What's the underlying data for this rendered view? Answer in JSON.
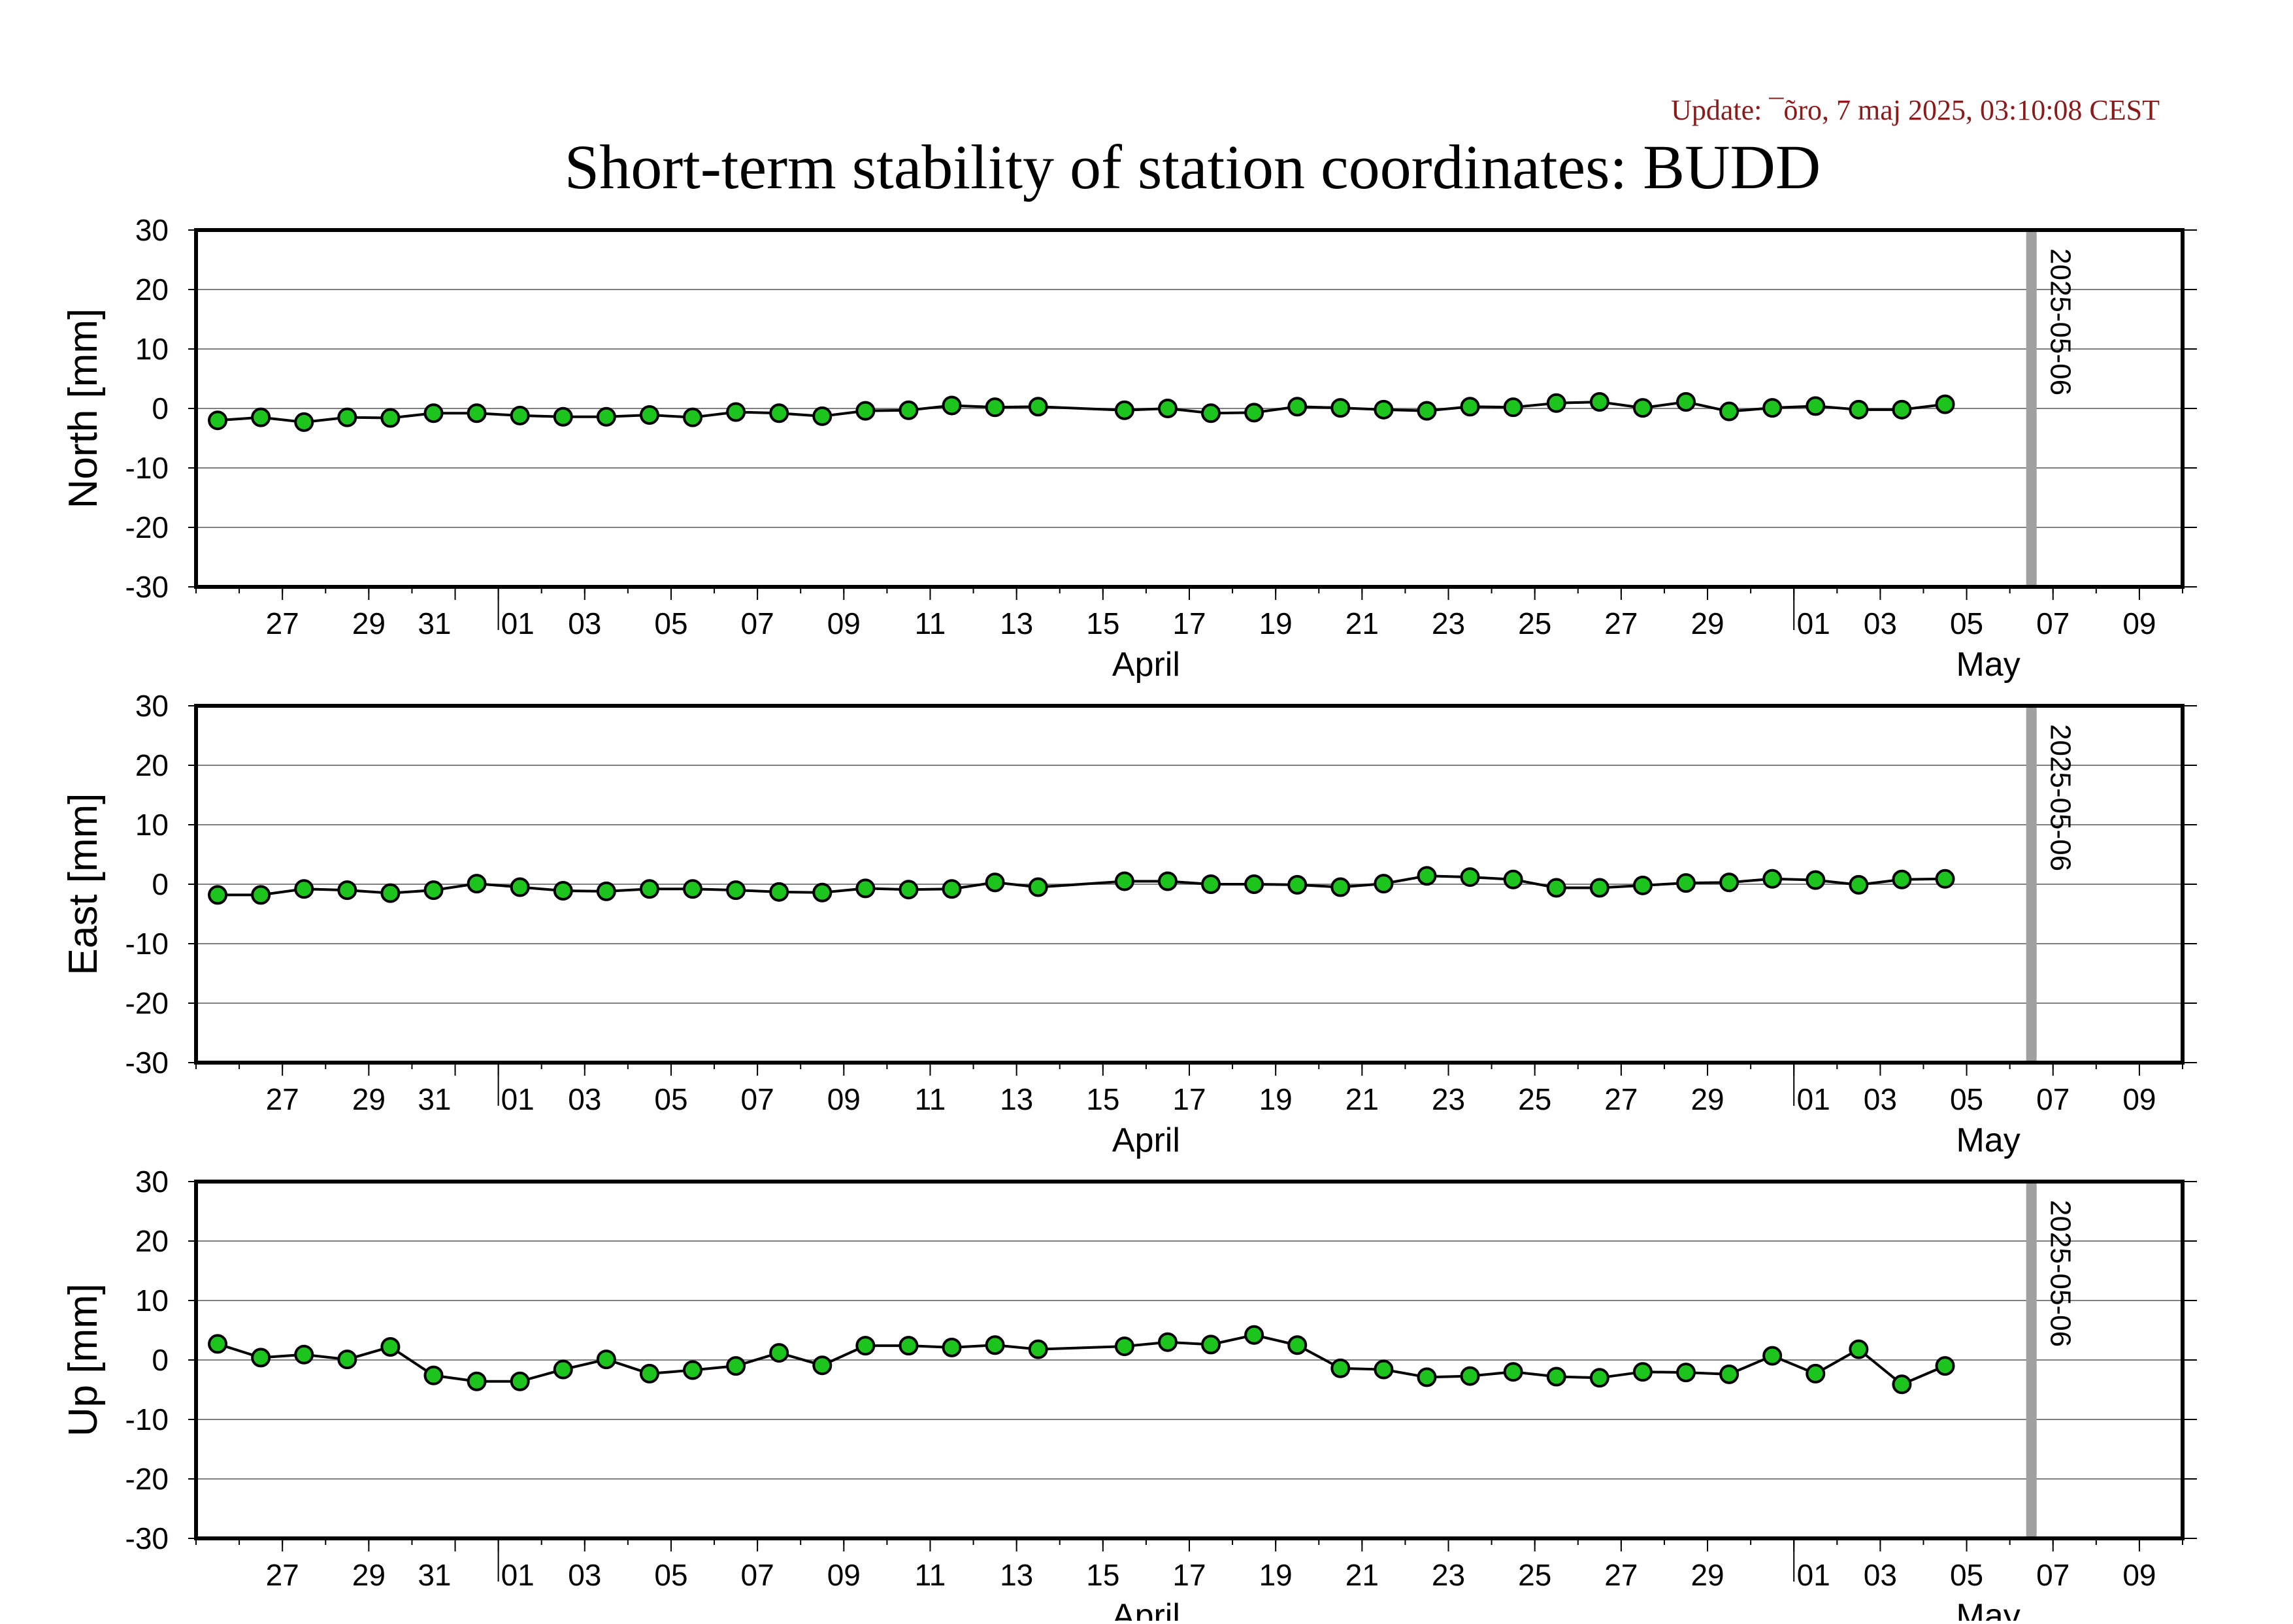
{
  "update_text": "Update: ¯õro, 7 maj 2025, 03:10:08 CEST",
  "title": "Short-term stability of station coordinates: BUDD",
  "colors": {
    "update_text": "#8b1a1a",
    "marker_fill": "#1ec41e",
    "marker_stroke": "#000000",
    "line": "#000000",
    "grid": "#808080",
    "date_marker": "#a0a0a0"
  },
  "chart_data": [
    {
      "type": "line",
      "panel": "north",
      "ylabel": "North [mm]",
      "ylim": [
        -30,
        30
      ],
      "yticks": [
        30,
        20,
        10,
        0,
        -10,
        -20,
        -30
      ],
      "grid": "horizontal",
      "xlim": [
        "2025-03-25",
        "2025-05-10"
      ],
      "xtick_labels": [
        "27",
        "29",
        "31",
        "01",
        "03",
        "05",
        "07",
        "09",
        "11",
        "13",
        "15",
        "17",
        "19",
        "21",
        "23",
        "25",
        "27",
        "29",
        "01",
        "03",
        "05",
        "07",
        "09"
      ],
      "month_labels": [
        "April",
        "May"
      ],
      "date_marker": {
        "date": "2025-05-06",
        "label": "2025-05-06"
      },
      "x": [
        "2025-03-25",
        "2025-03-26",
        "2025-03-27",
        "2025-03-28",
        "2025-03-29",
        "2025-03-30",
        "2025-03-31",
        "2025-04-01",
        "2025-04-02",
        "2025-04-03",
        "2025-04-04",
        "2025-04-05",
        "2025-04-06",
        "2025-04-07",
        "2025-04-08",
        "2025-04-09",
        "2025-04-10",
        "2025-04-11",
        "2025-04-12",
        "2025-04-13",
        "2025-04-15",
        "2025-04-16",
        "2025-04-17",
        "2025-04-18",
        "2025-04-19",
        "2025-04-20",
        "2025-04-21",
        "2025-04-22",
        "2025-04-23",
        "2025-04-24",
        "2025-04-25",
        "2025-04-26",
        "2025-04-27",
        "2025-04-28",
        "2025-04-29",
        "2025-04-30",
        "2025-05-01",
        "2025-05-02",
        "2025-05-03",
        "2025-05-04"
      ],
      "values": [
        -2.0,
        -1.5,
        -2.3,
        -1.5,
        -1.6,
        -0.8,
        -0.8,
        -1.2,
        -1.4,
        -1.4,
        -1.1,
        -1.5,
        -0.6,
        -0.8,
        -1.3,
        -0.4,
        -0.3,
        0.5,
        0.2,
        0.3,
        -0.3,
        0.0,
        -0.8,
        -0.7,
        0.3,
        0.1,
        -0.2,
        -0.4,
        0.3,
        0.2,
        0.9,
        1.1,
        0.1,
        1.1,
        -0.5,
        0.1,
        0.4,
        -0.2,
        -0.2,
        0.7
      ]
    },
    {
      "type": "line",
      "panel": "east",
      "ylabel": "East [mm]",
      "ylim": [
        -30,
        30
      ],
      "yticks": [
        30,
        20,
        10,
        0,
        -10,
        -20,
        -30
      ],
      "grid": "horizontal",
      "xlim": [
        "2025-03-25",
        "2025-05-10"
      ],
      "xtick_labels": [
        "27",
        "29",
        "31",
        "01",
        "03",
        "05",
        "07",
        "09",
        "11",
        "13",
        "15",
        "17",
        "19",
        "21",
        "23",
        "25",
        "27",
        "29",
        "01",
        "03",
        "05",
        "07",
        "09"
      ],
      "month_labels": [
        "April",
        "May"
      ],
      "date_marker": {
        "date": "2025-05-06",
        "label": "2025-05-06"
      },
      "x": [
        "2025-03-25",
        "2025-03-26",
        "2025-03-27",
        "2025-03-28",
        "2025-03-29",
        "2025-03-30",
        "2025-03-31",
        "2025-04-01",
        "2025-04-02",
        "2025-04-03",
        "2025-04-04",
        "2025-04-05",
        "2025-04-06",
        "2025-04-07",
        "2025-04-08",
        "2025-04-09",
        "2025-04-10",
        "2025-04-11",
        "2025-04-12",
        "2025-04-13",
        "2025-04-15",
        "2025-04-16",
        "2025-04-17",
        "2025-04-18",
        "2025-04-19",
        "2025-04-20",
        "2025-04-21",
        "2025-04-22",
        "2025-04-23",
        "2025-04-24",
        "2025-04-25",
        "2025-04-26",
        "2025-04-27",
        "2025-04-28",
        "2025-04-29",
        "2025-04-30",
        "2025-05-01",
        "2025-05-02",
        "2025-05-03",
        "2025-05-04"
      ],
      "values": [
        -1.8,
        -1.8,
        -0.8,
        -1.0,
        -1.5,
        -1.0,
        0.1,
        -0.5,
        -1.1,
        -1.2,
        -0.8,
        -0.8,
        -1.0,
        -1.3,
        -1.4,
        -0.7,
        -0.9,
        -0.8,
        0.3,
        -0.5,
        0.5,
        0.5,
        0.0,
        0.0,
        -0.1,
        -0.5,
        0.1,
        1.4,
        1.2,
        0.8,
        -0.6,
        -0.6,
        -0.2,
        0.2,
        0.3,
        0.9,
        0.7,
        -0.1,
        0.8,
        0.9
      ]
    },
    {
      "type": "line",
      "panel": "up",
      "ylabel": "Up [mm]",
      "ylim": [
        -30,
        30
      ],
      "yticks": [
        30,
        20,
        10,
        0,
        -10,
        -20,
        -30
      ],
      "grid": "horizontal",
      "xlim": [
        "2025-03-25",
        "2025-05-10"
      ],
      "xtick_labels": [
        "27",
        "29",
        "31",
        "01",
        "03",
        "05",
        "07",
        "09",
        "11",
        "13",
        "15",
        "17",
        "19",
        "21",
        "23",
        "25",
        "27",
        "29",
        "01",
        "03",
        "05",
        "07",
        "09"
      ],
      "month_labels": [
        "April",
        "May"
      ],
      "date_marker": {
        "date": "2025-05-06",
        "label": "2025-05-06"
      },
      "x": [
        "2025-03-25",
        "2025-03-26",
        "2025-03-27",
        "2025-03-28",
        "2025-03-29",
        "2025-03-30",
        "2025-03-31",
        "2025-04-01",
        "2025-04-02",
        "2025-04-03",
        "2025-04-04",
        "2025-04-05",
        "2025-04-06",
        "2025-04-07",
        "2025-04-08",
        "2025-04-09",
        "2025-04-10",
        "2025-04-11",
        "2025-04-12",
        "2025-04-13",
        "2025-04-15",
        "2025-04-16",
        "2025-04-17",
        "2025-04-18",
        "2025-04-19",
        "2025-04-20",
        "2025-04-21",
        "2025-04-22",
        "2025-04-23",
        "2025-04-24",
        "2025-04-25",
        "2025-04-26",
        "2025-04-27",
        "2025-04-28",
        "2025-04-29",
        "2025-04-30",
        "2025-05-01",
        "2025-05-02",
        "2025-05-03",
        "2025-05-04"
      ],
      "values": [
        2.7,
        0.4,
        0.9,
        0.1,
        2.2,
        -2.6,
        -3.6,
        -3.6,
        -1.6,
        0.1,
        -2.3,
        -1.7,
        -1.0,
        1.2,
        -0.9,
        2.4,
        2.4,
        2.1,
        2.5,
        1.8,
        2.3,
        3.0,
        2.6,
        4.2,
        2.5,
        -1.4,
        -1.6,
        -2.9,
        -2.7,
        -2.0,
        -2.8,
        -3.0,
        -2.0,
        -2.1,
        -2.4,
        0.7,
        -2.3,
        1.8,
        -4.1,
        -1.0
      ]
    }
  ]
}
